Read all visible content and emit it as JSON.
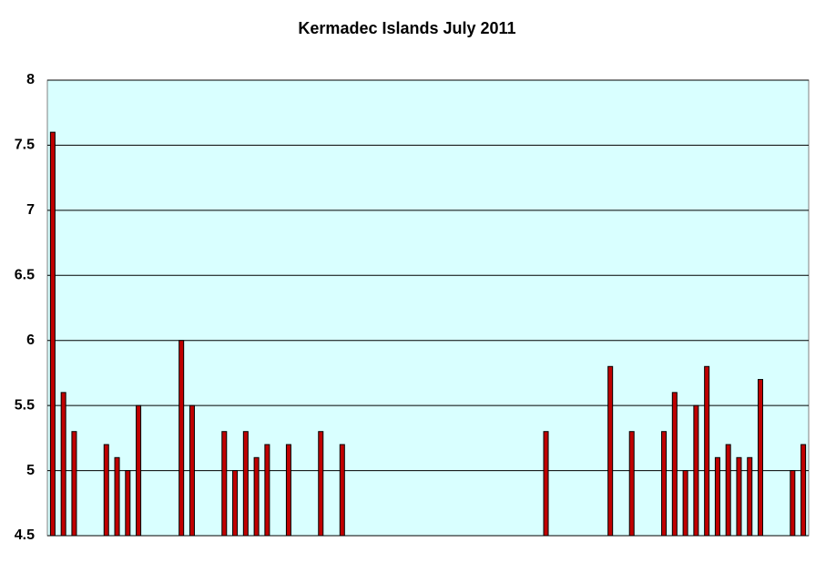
{
  "chart_data": {
    "type": "bar",
    "title": "Kermadec Islands July 2011",
    "categories": [
      null,
      null,
      null,
      null,
      null,
      null,
      null,
      null,
      null,
      null,
      null,
      null,
      null,
      null,
      null,
      null,
      null,
      null,
      null,
      null,
      null,
      null,
      null,
      null,
      null,
      null,
      null,
      null,
      null,
      null,
      null,
      null,
      null,
      null,
      null,
      null,
      null,
      null,
      null,
      null,
      null,
      null,
      null,
      null,
      null,
      null,
      null,
      null,
      null,
      null,
      null,
      null,
      null,
      null,
      null,
      null,
      null,
      null,
      null,
      null,
      null,
      null,
      null,
      null,
      null,
      null,
      null,
      null,
      null,
      null,
      null
    ],
    "values": [
      7.6,
      5.6,
      5.3,
      null,
      null,
      5.2,
      5.1,
      5.0,
      5.5,
      null,
      null,
      null,
      6.0,
      5.5,
      null,
      null,
      5.3,
      5.0,
      5.3,
      5.1,
      5.2,
      null,
      5.2,
      null,
      null,
      5.3,
      null,
      5.2,
      null,
      null,
      null,
      null,
      null,
      null,
      null,
      null,
      null,
      null,
      null,
      null,
      null,
      null,
      null,
      null,
      null,
      null,
      5.3,
      null,
      null,
      null,
      null,
      null,
      5.8,
      null,
      5.3,
      null,
      null,
      5.3,
      5.6,
      5.0,
      5.5,
      5.8,
      5.1,
      5.2,
      5.1,
      5.1,
      5.7,
      null,
      null,
      5.0,
      5.2
    ],
    "color": "#c00000",
    "ylim": [
      4.5,
      8
    ],
    "yticks": [
      4.5,
      5,
      5.5,
      6,
      6.5,
      7,
      7.5,
      8
    ],
    "grid": true
  }
}
